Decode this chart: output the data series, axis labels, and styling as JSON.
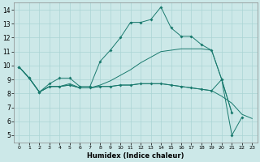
{
  "xlabel": "Humidex (Indice chaleur)",
  "xlim": [
    -0.5,
    23.5
  ],
  "ylim": [
    4.5,
    14.5
  ],
  "yticks": [
    5,
    6,
    7,
    8,
    9,
    10,
    11,
    12,
    13,
    14
  ],
  "xticks": [
    0,
    1,
    2,
    3,
    4,
    5,
    6,
    7,
    8,
    9,
    10,
    11,
    12,
    13,
    14,
    15,
    16,
    17,
    18,
    19,
    20,
    21,
    22,
    23
  ],
  "bg_color": "#cce8e8",
  "line_color": "#1a7a6e",
  "grid_color": "#aad4d4",
  "series": [
    {
      "x": [
        0,
        1,
        2,
        3,
        4,
        5,
        6,
        7,
        8,
        9,
        10,
        11,
        12,
        13,
        14,
        15,
        16,
        17,
        18,
        19,
        20,
        21
      ],
      "y": [
        9.9,
        9.1,
        8.1,
        8.7,
        9.1,
        9.1,
        8.5,
        8.5,
        10.3,
        11.1,
        12.0,
        13.1,
        13.1,
        13.3,
        14.2,
        12.7,
        12.1,
        12.1,
        11.5,
        11.1,
        9.0,
        6.6
      ],
      "marker": true
    },
    {
      "x": [
        0,
        1,
        2,
        3,
        4,
        5,
        6,
        7,
        8,
        9,
        10,
        11,
        12,
        13,
        14,
        15,
        16,
        17,
        18,
        19,
        20,
        21
      ],
      "y": [
        9.9,
        9.1,
        8.1,
        8.5,
        8.5,
        8.7,
        8.4,
        8.4,
        8.6,
        8.9,
        9.3,
        9.7,
        10.2,
        10.6,
        11.0,
        11.1,
        11.2,
        11.2,
        11.2,
        11.1,
        9.0,
        6.6
      ],
      "marker": false
    },
    {
      "x": [
        0,
        1,
        2,
        3,
        4,
        5,
        6,
        7,
        8,
        9,
        10,
        11,
        12,
        13,
        14,
        15,
        16,
        17,
        18,
        19,
        20,
        21,
        22,
        23
      ],
      "y": [
        9.9,
        9.1,
        8.1,
        8.5,
        8.5,
        8.6,
        8.4,
        8.4,
        8.5,
        8.5,
        8.6,
        8.6,
        8.7,
        8.7,
        8.7,
        8.6,
        8.5,
        8.4,
        8.3,
        8.2,
        7.8,
        7.3,
        6.5,
        6.2
      ],
      "marker": false
    },
    {
      "x": [
        0,
        1,
        2,
        3,
        4,
        5,
        6,
        7,
        8,
        9,
        10,
        11,
        12,
        13,
        14,
        15,
        16,
        17,
        18,
        19,
        20,
        21,
        22,
        23
      ],
      "y": [
        9.9,
        9.1,
        8.1,
        8.5,
        8.5,
        8.6,
        8.4,
        8.4,
        8.5,
        8.5,
        8.6,
        8.6,
        8.7,
        8.7,
        8.7,
        8.6,
        8.5,
        8.4,
        8.3,
        8.2,
        9.0,
        5.0,
        6.3,
        null
      ],
      "marker": true
    }
  ]
}
